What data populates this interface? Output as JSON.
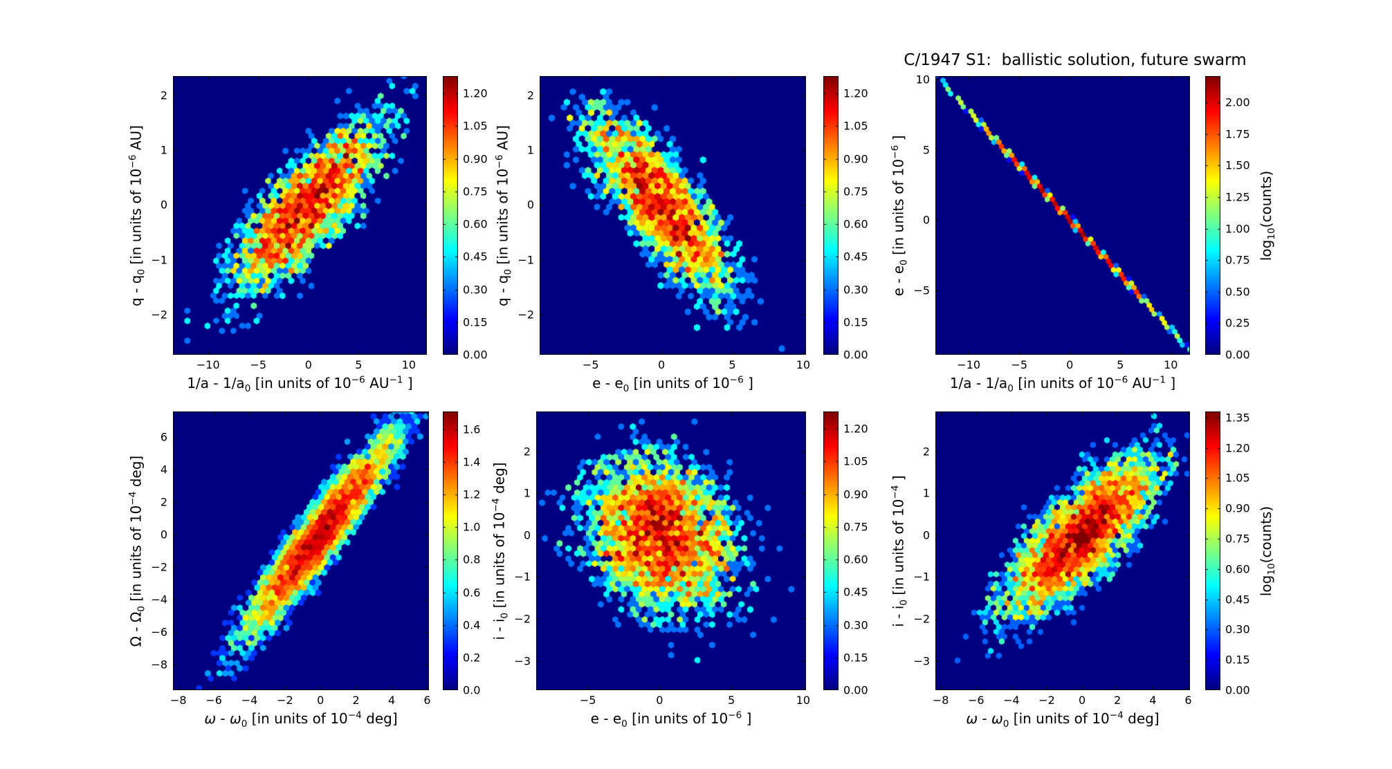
{
  "figure": {
    "title": "C/1947 S1:  ballistic solution, future swarm"
  },
  "colors": {
    "figure_background": "#ffffff",
    "bin_zero_background": "#000080",
    "spine": "#000000",
    "text": "#000000",
    "colormap": "jet"
  },
  "chart_data": [
    {
      "type": "hexbin",
      "id": "dq-vs-dinva",
      "x": {
        "label": [
          {
            "t": "1/a - 1/a"
          },
          {
            "t": "0",
            "sub": 1
          },
          {
            "t": " [in units of 10"
          },
          {
            "t": "−6",
            "sup": 1
          },
          {
            "t": " AU"
          },
          {
            "t": "−1",
            "sup": 1
          },
          {
            "t": " ]"
          }
        ],
        "lim": [
          -13.5,
          11.8
        ],
        "tick_values": [
          -10,
          -5,
          0,
          5,
          10
        ],
        "tick_labels": [
          "−10",
          "−5",
          "0",
          "5",
          "10"
        ]
      },
      "y": {
        "label": [
          {
            "t": "q - q"
          },
          {
            "t": "0",
            "sub": 1
          },
          {
            "t": " [in units of 10"
          },
          {
            "t": "−6",
            "sup": 1
          },
          {
            "t": " AU]"
          }
        ],
        "lim": [
          -2.73,
          2.35
        ],
        "tick_values": [
          2,
          1,
          0,
          -1,
          -2
        ],
        "tick_labels": [
          "2",
          "1",
          "0",
          "−1",
          "−2"
        ]
      },
      "colorbar": {
        "vmax": 1.28,
        "tick_values": [
          0.0,
          0.15,
          0.3,
          0.45,
          0.6,
          0.75,
          0.9,
          1.05,
          1.2
        ],
        "tick_labels": [
          "0.00",
          "0.15",
          "0.30",
          "0.45",
          "0.60",
          "0.75",
          "0.90",
          "1.05",
          "1.20"
        ],
        "label": []
      },
      "dist": {
        "shape": "gaussian-blob",
        "amp": 14,
        "sx": 4.3,
        "sy": 0.9,
        "rho": 0.8,
        "nx": 44,
        "seed": 11
      }
    },
    {
      "type": "hexbin",
      "id": "dq-vs-de",
      "x": {
        "label": [
          {
            "t": "e - e"
          },
          {
            "t": "0",
            "sub": 1
          },
          {
            "t": " [in units of 10"
          },
          {
            "t": "−6",
            "sup": 1
          },
          {
            "t": " ]"
          }
        ],
        "lim": [
          -8.6,
          10.2
        ],
        "tick_values": [
          -5,
          0,
          5,
          10
        ],
        "tick_labels": [
          "−5",
          "0",
          "5",
          "10"
        ]
      },
      "y": {
        "label": [
          {
            "t": "q - q"
          },
          {
            "t": "0",
            "sub": 1
          },
          {
            "t": " [in units of 10"
          },
          {
            "t": "−6",
            "sup": 1
          },
          {
            "t": " AU]"
          }
        ],
        "lim": [
          -2.73,
          2.35
        ],
        "tick_values": [
          2,
          1,
          0,
          -1,
          -2
        ],
        "tick_labels": [
          "2",
          "1",
          "0",
          "−1",
          "−2"
        ]
      },
      "colorbar": {
        "vmax": 1.28,
        "tick_values": [
          0.0,
          0.15,
          0.3,
          0.45,
          0.6,
          0.75,
          0.9,
          1.05,
          1.2
        ],
        "tick_labels": [
          "0.00",
          "0.15",
          "0.30",
          "0.45",
          "0.60",
          "0.75",
          "0.90",
          "1.05",
          "1.20"
        ],
        "label": []
      },
      "dist": {
        "shape": "gaussian-blob",
        "amp": 14,
        "sx": 2.9,
        "sy": 0.95,
        "rho": -0.8,
        "nx": 44,
        "seed": 22
      }
    },
    {
      "type": "hexbin",
      "id": "de-vs-dinva",
      "x": {
        "label": [
          {
            "t": "1/a - 1/a"
          },
          {
            "t": "0",
            "sub": 1
          },
          {
            "t": " [in units of 10"
          },
          {
            "t": "−6",
            "sup": 1
          },
          {
            "t": " AU"
          },
          {
            "t": "−1",
            "sup": 1
          },
          {
            "t": " ]"
          }
        ],
        "lim": [
          -13.3,
          11.9
        ],
        "tick_values": [
          -10,
          -5,
          0,
          5,
          10
        ],
        "tick_labels": [
          "−10",
          "−5",
          "0",
          "5",
          "10"
        ]
      },
      "y": {
        "label": [
          {
            "t": "e - e"
          },
          {
            "t": "0",
            "sub": 1
          },
          {
            "t": " [in units of 10"
          },
          {
            "t": "−6",
            "sup": 1
          },
          {
            "t": " ]"
          }
        ],
        "lim": [
          -9.6,
          10.25
        ],
        "tick_values": [
          10,
          5,
          0,
          -5
        ],
        "tick_labels": [
          "10",
          "5",
          "0",
          "−5"
        ]
      },
      "colorbar": {
        "vmax": 2.21,
        "tick_values": [
          0.0,
          0.25,
          0.5,
          0.75,
          1.0,
          1.25,
          1.5,
          1.75,
          2.0
        ],
        "tick_labels": [
          "0.00",
          "0.25",
          "0.50",
          "0.75",
          "1.00",
          "1.25",
          "1.50",
          "1.75",
          "2.00"
        ],
        "label": [
          {
            "t": "log"
          },
          {
            "t": "10",
            "sub": 1
          },
          {
            "t": "(counts)"
          }
        ]
      },
      "dist": {
        "shape": "gaussian-blob",
        "amp": 140,
        "sx": 5.2,
        "sy": 4.05,
        "rho": -0.9995,
        "nx": 50,
        "seed": 33
      }
    },
    {
      "type": "hexbin",
      "id": "dOmega-vs-domega",
      "x": {
        "label": [
          {
            "t": "ω",
            "i": 1
          },
          {
            "t": " - "
          },
          {
            "t": "ω",
            "i": 1
          },
          {
            "t": "0",
            "sub": 1
          },
          {
            "t": " [in units of 10"
          },
          {
            "t": "−4",
            "sup": 1
          },
          {
            "t": " deg]"
          }
        ],
        "lim": [
          -8.3,
          6.1
        ],
        "tick_values": [
          -8,
          -6,
          -4,
          -2,
          0,
          2,
          4,
          6
        ],
        "tick_labels": [
          "−8",
          "−6",
          "−4",
          "−2",
          "0",
          "2",
          "4",
          "6"
        ]
      },
      "y": {
        "label": [
          {
            "t": "Ω - Ω"
          },
          {
            "t": "0",
            "sub": 1
          },
          {
            "t": " [in units of 10"
          },
          {
            "t": "−4",
            "sup": 1
          },
          {
            "t": " deg]"
          }
        ],
        "lim": [
          -9.6,
          7.6
        ],
        "tick_values": [
          6,
          4,
          2,
          0,
          -2,
          -4,
          -6,
          -8
        ],
        "tick_labels": [
          "6",
          "4",
          "2",
          "0",
          "−2",
          "−4",
          "−6",
          "−8"
        ]
      },
      "colorbar": {
        "vmax": 1.71,
        "tick_values": [
          0.0,
          0.2,
          0.4,
          0.6,
          0.8,
          1.0,
          1.2,
          1.4,
          1.6
        ],
        "tick_labels": [
          "0.0",
          "0.2",
          "0.4",
          "0.6",
          "0.8",
          "1.0",
          "1.2",
          "1.4",
          "1.6"
        ],
        "label": []
      },
      "dist": {
        "shape": "gaussian-blob",
        "amp": 40,
        "sx": 2.3,
        "sy": 3.3,
        "rho": 0.94,
        "nx": 44,
        "seed": 44
      }
    },
    {
      "type": "hexbin",
      "id": "di-vs-de",
      "x": {
        "label": [
          {
            "t": "e - e"
          },
          {
            "t": "0",
            "sub": 1
          },
          {
            "t": " [in units of 10"
          },
          {
            "t": "−6",
            "sup": 1
          },
          {
            "t": " ]"
          }
        ],
        "lim": [
          -8.6,
          10.2
        ],
        "tick_values": [
          -5,
          0,
          5,
          10
        ],
        "tick_labels": [
          "−5",
          "0",
          "5",
          "10"
        ]
      },
      "y": {
        "label": [
          {
            "t": "i - i"
          },
          {
            "t": "0",
            "sub": 1
          },
          {
            "t": " [in units of 10"
          },
          {
            "t": "−4",
            "sup": 1
          },
          {
            "t": " deg]"
          }
        ],
        "lim": [
          -3.7,
          2.95
        ],
        "tick_values": [
          2,
          1,
          0,
          -1,
          -2,
          -3
        ],
        "tick_labels": [
          "2",
          "1",
          "0",
          "−1",
          "−2",
          "−3"
        ]
      },
      "colorbar": {
        "vmax": 1.28,
        "tick_values": [
          0.0,
          0.15,
          0.3,
          0.45,
          0.6,
          0.75,
          0.9,
          1.05,
          1.2
        ],
        "tick_labels": [
          "0.00",
          "0.15",
          "0.30",
          "0.45",
          "0.60",
          "0.75",
          "0.90",
          "1.05",
          "1.20"
        ],
        "label": []
      },
      "dist": {
        "shape": "gaussian-blob",
        "amp": 14,
        "sx": 2.9,
        "sy": 1.05,
        "rho": -0.25,
        "nx": 46,
        "seed": 55
      }
    },
    {
      "type": "hexbin",
      "id": "di-vs-domega",
      "x": {
        "label": [
          {
            "t": "ω",
            "i": 1
          },
          {
            "t": " - "
          },
          {
            "t": "ω",
            "i": 1
          },
          {
            "t": "0",
            "sub": 1
          },
          {
            "t": " [in units of 10"
          },
          {
            "t": "−4",
            "sup": 1
          },
          {
            "t": " deg]"
          }
        ],
        "lim": [
          -8.3,
          6.1
        ],
        "tick_values": [
          -8,
          -6,
          -4,
          -2,
          0,
          2,
          4,
          6
        ],
        "tick_labels": [
          "−8",
          "−6",
          "−4",
          "−2",
          "0",
          "2",
          "4",
          "6"
        ]
      },
      "y": {
        "label": [
          {
            "t": "i - i"
          },
          {
            "t": "0",
            "sub": 1
          },
          {
            "t": " [in units of 10"
          },
          {
            "t": "−4",
            "sup": 1
          },
          {
            "t": " ]"
          }
        ],
        "lim": [
          -3.7,
          2.95
        ],
        "tick_values": [
          2,
          1,
          0,
          -1,
          -2,
          -3
        ],
        "tick_labels": [
          "2",
          "1",
          "0",
          "−1",
          "−2",
          "−3"
        ]
      },
      "colorbar": {
        "vmax": 1.38,
        "tick_values": [
          0.0,
          0.15,
          0.3,
          0.45,
          0.6,
          0.75,
          0.9,
          1.05,
          1.2,
          1.35
        ],
        "tick_labels": [
          "0.00",
          "0.15",
          "0.30",
          "0.45",
          "0.60",
          "0.75",
          "0.90",
          "1.05",
          "1.20",
          "1.35"
        ],
        "label": [
          {
            "t": "log"
          },
          {
            "t": "10",
            "sub": 1
          },
          {
            "t": "(counts)"
          }
        ]
      },
      "dist": {
        "shape": "gaussian-blob",
        "amp": 20,
        "sx": 2.4,
        "sy": 1.05,
        "rho": 0.78,
        "nx": 46,
        "seed": 66
      }
    }
  ]
}
